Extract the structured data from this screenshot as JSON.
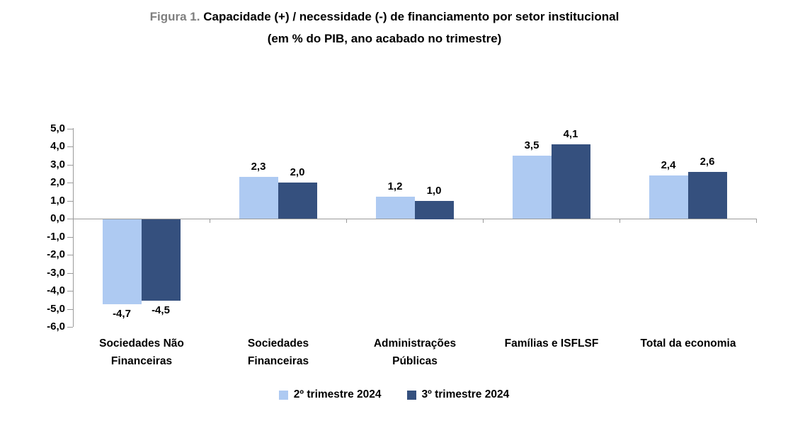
{
  "title": {
    "prefix": "Figura 1.",
    "main": "Capacidade (+) / necessidade (-) de financiamento por setor institucional",
    "subtitle": "(em % do PIB, ano acabado no trimestre)"
  },
  "chart_data": {
    "type": "bar",
    "categories": [
      "Sociedades Não Financeiras",
      "Sociedades Financeiras",
      "Administrações Públicas",
      "Famílias e ISFLSF",
      "Total da economia"
    ],
    "series": [
      {
        "name": "2º trimestre 2024",
        "color": "#AECAF2",
        "values": [
          -4.7,
          2.3,
          1.2,
          3.5,
          2.4
        ]
      },
      {
        "name": "3º trimestre 2024",
        "color": "#35507E",
        "values": [
          -4.5,
          2.0,
          1.0,
          4.1,
          2.6
        ]
      }
    ],
    "value_labels": [
      [
        "-4,7",
        "2,3",
        "1,2",
        "3,5",
        "2,4"
      ],
      [
        "-4,5",
        "2,0",
        "1,0",
        "4,1",
        "2,6"
      ]
    ],
    "ylim": [
      -6,
      5
    ],
    "ytick_labels": [
      "5,0",
      "4,0",
      "3,0",
      "2,0",
      "1,0",
      "0,0",
      "-1,0",
      "-2,0",
      "-3,0",
      "-4,0",
      "-5,0",
      "-6,0"
    ],
    "grid": false,
    "legend_position": "bottom"
  },
  "colors": {
    "axis": "#9a9a9a",
    "title_prefix": "#7F7F7F",
    "series_light": "#AECAF2",
    "series_dark": "#35507E"
  }
}
